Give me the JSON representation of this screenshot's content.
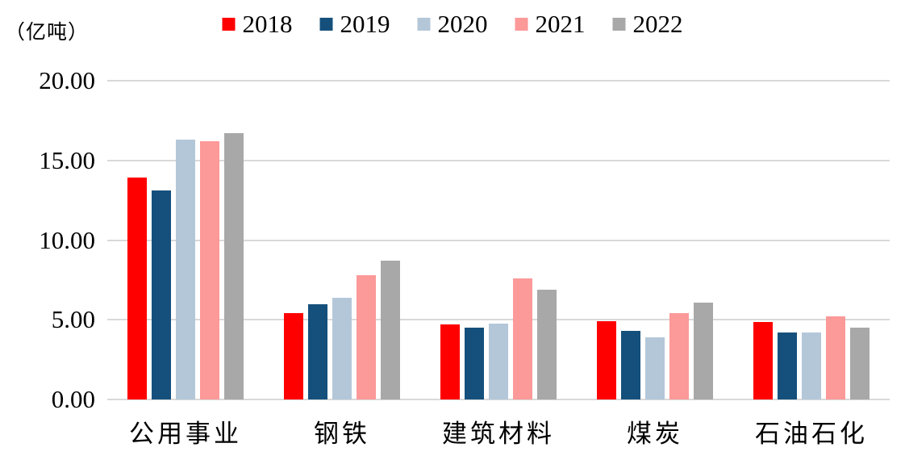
{
  "chart_data": {
    "type": "bar",
    "title": "",
    "unit_label": "（亿吨）",
    "categories": [
      "公用事业",
      "钢铁",
      "建筑材料",
      "煤炭",
      "石油石化"
    ],
    "series": [
      {
        "name": "2018",
        "color": "#FF0000",
        "values": [
          13.9,
          5.4,
          4.7,
          4.9,
          4.85
        ]
      },
      {
        "name": "2019",
        "color": "#15507C",
        "values": [
          13.1,
          6.0,
          4.5,
          4.3,
          4.2
        ]
      },
      {
        "name": "2020",
        "color": "#B4C7D9",
        "values": [
          16.3,
          6.4,
          4.75,
          3.9,
          4.2
        ]
      },
      {
        "name": "2021",
        "color": "#FC9999",
        "values": [
          16.2,
          7.8,
          7.6,
          5.4,
          5.2
        ]
      },
      {
        "name": "2022",
        "color": "#A8A8A8",
        "values": [
          16.7,
          8.7,
          6.9,
          6.1,
          4.5
        ]
      }
    ],
    "ylim": [
      0,
      20
    ],
    "ytick_values": [
      0,
      5,
      10,
      15,
      20
    ],
    "ytick_labels": [
      "0.00",
      "5.00",
      "10.00",
      "15.00",
      "20.00"
    ],
    "grid": true,
    "gridline_color": "#D9D9D9",
    "legend_position": "top"
  }
}
